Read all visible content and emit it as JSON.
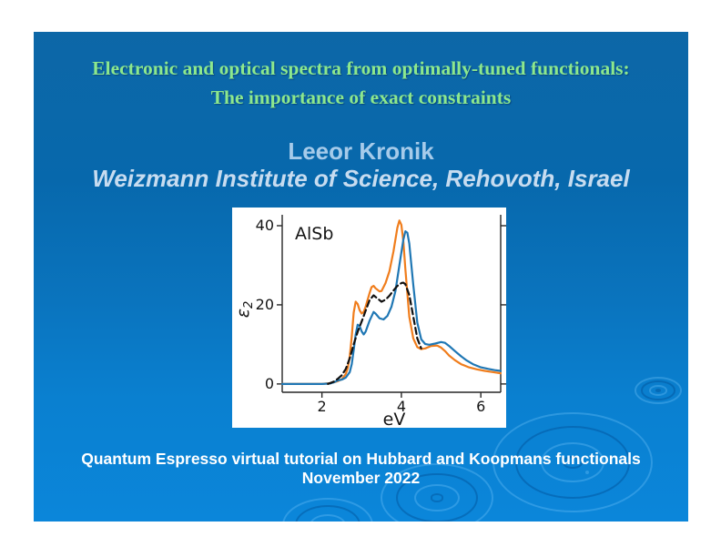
{
  "slide": {
    "title_line1": "Electronic and optical spectra from optimally-tuned functionals:",
    "title_line2": "The importance of exact constraints",
    "author": "Leeor Kronik",
    "affiliation": "Weizmann Institute of Science, Rehovoth, Israel",
    "footer_line1": "Quantum Espresso virtual tutorial on Hubbard and Koopmans functionals",
    "footer_line2": "November 2022"
  },
  "colors": {
    "title_green": "#8de88d",
    "author_light_blue": "#a6cbea",
    "affiliation_light_blue": "#c7dcf0",
    "footer_white": "#ffffff",
    "slide_gradient_top": "#0d67a7",
    "slide_gradient_bottom": "#0b86da",
    "series_orange": "#f07d1c",
    "series_blue": "#1f77b4",
    "series_dashed_black": "#111111"
  },
  "chart_data": {
    "type": "line",
    "annotation": "AlSb",
    "xlabel": "eV",
    "ylabel": "ε2",
    "ylabel_main": "ε",
    "ylabel_sub": "2",
    "xlim": [
      1.0,
      6.5
    ],
    "ylim": [
      -2.1,
      42.3
    ],
    "xticks": [
      2,
      4,
      6
    ],
    "yticks": [
      0,
      20,
      40
    ],
    "grid": false,
    "legend": "none",
    "series": [
      {
        "name": "orange-curve",
        "color": "#f07d1c",
        "style": "solid",
        "points": [
          [
            1.0,
            0
          ],
          [
            1.5,
            0
          ],
          [
            2.0,
            0
          ],
          [
            2.1,
            0.1
          ],
          [
            2.2,
            0.2
          ],
          [
            2.3,
            0.4
          ],
          [
            2.4,
            0.7
          ],
          [
            2.5,
            1.2
          ],
          [
            2.6,
            2.5
          ],
          [
            2.65,
            4.0
          ],
          [
            2.7,
            7.0
          ],
          [
            2.75,
            12.0
          ],
          [
            2.8,
            18.0
          ],
          [
            2.85,
            20.8
          ],
          [
            2.9,
            20.2
          ],
          [
            2.95,
            18.6
          ],
          [
            3.0,
            17.8
          ],
          [
            3.05,
            18.2
          ],
          [
            3.1,
            19.5
          ],
          [
            3.2,
            23.0
          ],
          [
            3.25,
            24.5
          ],
          [
            3.3,
            24.8
          ],
          [
            3.35,
            24.2
          ],
          [
            3.45,
            23.4
          ],
          [
            3.5,
            23.5
          ],
          [
            3.6,
            25.5
          ],
          [
            3.7,
            28.5
          ],
          [
            3.8,
            33.5
          ],
          [
            3.9,
            39.5
          ],
          [
            3.95,
            41.3
          ],
          [
            4.0,
            40.2
          ],
          [
            4.05,
            36.0
          ],
          [
            4.1,
            29.0
          ],
          [
            4.2,
            17.0
          ],
          [
            4.3,
            11.5
          ],
          [
            4.4,
            9.3
          ],
          [
            4.5,
            8.8
          ],
          [
            4.6,
            9.0
          ],
          [
            4.75,
            9.6
          ],
          [
            4.9,
            9.7
          ],
          [
            5.0,
            9.2
          ],
          [
            5.1,
            8.3
          ],
          [
            5.2,
            7.2
          ],
          [
            5.35,
            6.0
          ],
          [
            5.5,
            5.0
          ],
          [
            5.7,
            4.2
          ],
          [
            5.9,
            3.7
          ],
          [
            6.1,
            3.3
          ],
          [
            6.3,
            3.0
          ],
          [
            6.5,
            2.7
          ]
        ]
      },
      {
        "name": "blue-curve",
        "color": "#1f77b4",
        "style": "solid",
        "points": [
          [
            1.0,
            0
          ],
          [
            1.5,
            0
          ],
          [
            2.0,
            0
          ],
          [
            2.2,
            0.1
          ],
          [
            2.3,
            0.4
          ],
          [
            2.4,
            0.9
          ],
          [
            2.5,
            1.1
          ],
          [
            2.6,
            1.6
          ],
          [
            2.7,
            3.0
          ],
          [
            2.75,
            5.0
          ],
          [
            2.8,
            8.5
          ],
          [
            2.85,
            12.5
          ],
          [
            2.9,
            15.0
          ],
          [
            2.95,
            14.6
          ],
          [
            3.0,
            13.3
          ],
          [
            3.05,
            12.5
          ],
          [
            3.1,
            13.2
          ],
          [
            3.2,
            16.0
          ],
          [
            3.3,
            18.2
          ],
          [
            3.35,
            17.8
          ],
          [
            3.45,
            16.6
          ],
          [
            3.55,
            16.3
          ],
          [
            3.65,
            17.2
          ],
          [
            3.75,
            19.5
          ],
          [
            3.85,
            23.5
          ],
          [
            3.95,
            30.0
          ],
          [
            4.05,
            36.5
          ],
          [
            4.1,
            38.6
          ],
          [
            4.15,
            38.2
          ],
          [
            4.2,
            35.5
          ],
          [
            4.3,
            25.0
          ],
          [
            4.4,
            15.5
          ],
          [
            4.5,
            11.3
          ],
          [
            4.6,
            10.1
          ],
          [
            4.7,
            9.9
          ],
          [
            4.85,
            10.2
          ],
          [
            5.0,
            10.6
          ],
          [
            5.1,
            10.4
          ],
          [
            5.2,
            9.6
          ],
          [
            5.35,
            8.3
          ],
          [
            5.5,
            7.0
          ],
          [
            5.65,
            5.9
          ],
          [
            5.8,
            5.0
          ],
          [
            6.0,
            4.2
          ],
          [
            6.2,
            3.8
          ],
          [
            6.35,
            3.5
          ],
          [
            6.5,
            3.3
          ]
        ]
      },
      {
        "name": "dashed-black-curve",
        "color": "#111111",
        "style": "dashed",
        "points": [
          [
            2.15,
            0
          ],
          [
            2.3,
            0.6
          ],
          [
            2.4,
            1.3
          ],
          [
            2.5,
            2.2
          ],
          [
            2.6,
            3.8
          ],
          [
            2.7,
            6.5
          ],
          [
            2.8,
            10.0
          ],
          [
            2.9,
            13.2
          ],
          [
            3.0,
            15.8
          ],
          [
            3.1,
            18.5
          ],
          [
            3.2,
            21.2
          ],
          [
            3.3,
            22.4
          ],
          [
            3.4,
            21.6
          ],
          [
            3.5,
            20.8
          ],
          [
            3.6,
            21.3
          ],
          [
            3.7,
            22.3
          ],
          [
            3.8,
            23.6
          ],
          [
            3.9,
            24.8
          ],
          [
            4.0,
            25.5
          ],
          [
            4.05,
            25.6
          ],
          [
            4.1,
            25.2
          ],
          [
            4.2,
            22.5
          ],
          [
            4.3,
            17.0
          ],
          [
            4.4,
            11.5
          ],
          [
            4.5,
            9.0
          ]
        ]
      }
    ]
  }
}
